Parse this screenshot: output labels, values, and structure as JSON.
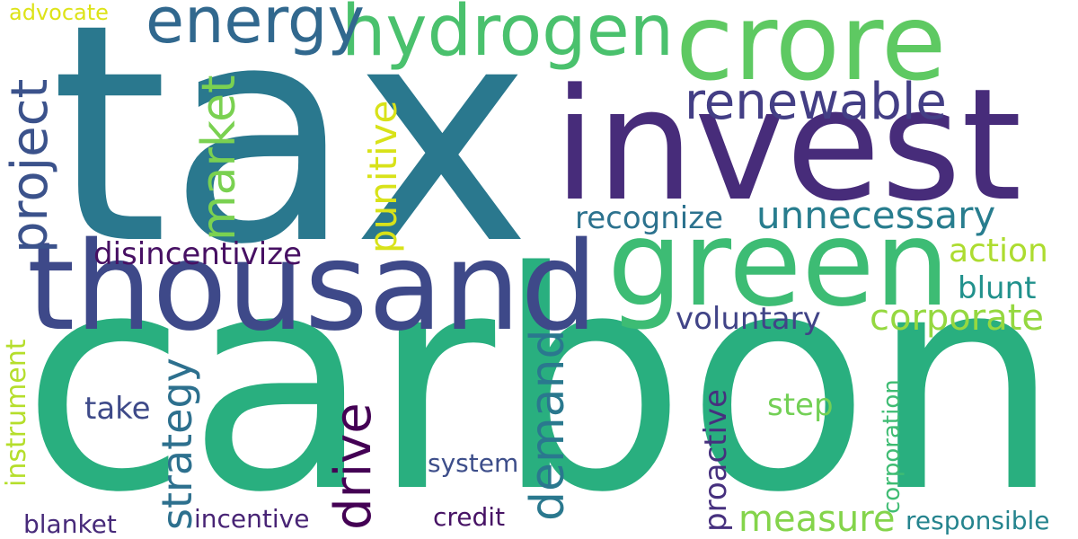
{
  "words": [
    {
      "id": "tax",
      "text": "tax",
      "color": "#2a788e",
      "orientation": "horizontal"
    },
    {
      "id": "carbon",
      "text": "carbon",
      "color": "#29af7f",
      "orientation": "horizontal"
    },
    {
      "id": "invest",
      "text": "invest",
      "color": "#472c7a",
      "orientation": "horizontal"
    },
    {
      "id": "thousand",
      "text": "thousand",
      "color": "#3e4989",
      "orientation": "horizontal"
    },
    {
      "id": "crore",
      "text": "crore",
      "color": "#5ec962",
      "orientation": "horizontal"
    },
    {
      "id": "green",
      "text": "green",
      "color": "#3dbc74",
      "orientation": "horizontal"
    },
    {
      "id": "hydrogen",
      "text": "hydrogen",
      "color": "#4ac16d",
      "orientation": "horizontal"
    },
    {
      "id": "energy",
      "text": "energy",
      "color": "#31688e",
      "orientation": "horizontal"
    },
    {
      "id": "renewable",
      "text": "renewable",
      "color": "#433e85",
      "orientation": "horizontal"
    },
    {
      "id": "project",
      "text": "project",
      "color": "#3b528b",
      "orientation": "vertical"
    },
    {
      "id": "market",
      "text": "market",
      "color": "#7ad151",
      "orientation": "vertical"
    },
    {
      "id": "punitive",
      "text": "punitive",
      "color": "#d8e219",
      "orientation": "vertical"
    },
    {
      "id": "advocate",
      "text": "advocate",
      "color": "#dde318",
      "orientation": "horizontal"
    },
    {
      "id": "unnecessary",
      "text": "unnecessary",
      "color": "#287d8e",
      "orientation": "horizontal"
    },
    {
      "id": "recognize",
      "text": "recognize",
      "color": "#2c728e",
      "orientation": "horizontal"
    },
    {
      "id": "disincentivize",
      "text": "disincentivize",
      "color": "#471063",
      "orientation": "horizontal"
    },
    {
      "id": "action",
      "text": "action",
      "color": "#addc30",
      "orientation": "horizontal"
    },
    {
      "id": "blunt",
      "text": "blunt",
      "color": "#21918c",
      "orientation": "horizontal"
    },
    {
      "id": "corporate",
      "text": "corporate",
      "color": "#95d840",
      "orientation": "horizontal"
    },
    {
      "id": "voluntary",
      "text": "voluntary",
      "color": "#414487",
      "orientation": "horizontal"
    },
    {
      "id": "drive",
      "text": "drive",
      "color": "#440154",
      "orientation": "vertical"
    },
    {
      "id": "demand",
      "text": "demand",
      "color": "#2a788e",
      "orientation": "vertical"
    },
    {
      "id": "strategy",
      "text": "strategy",
      "color": "#2d708e",
      "orientation": "vertical"
    },
    {
      "id": "instrument",
      "text": "instrument",
      "color": "#b5de2b",
      "orientation": "vertical"
    },
    {
      "id": "take",
      "text": "take",
      "color": "#3e4a89",
      "orientation": "horizontal"
    },
    {
      "id": "step",
      "text": "step",
      "color": "#73d056",
      "orientation": "horizontal"
    },
    {
      "id": "proactive",
      "text": "proactive",
      "color": "#46307e",
      "orientation": "vertical"
    },
    {
      "id": "corporation",
      "text": "corporation",
      "color": "#3fbc73",
      "orientation": "vertical"
    },
    {
      "id": "system",
      "text": "system",
      "color": "#3d4e8a",
      "orientation": "horizontal"
    },
    {
      "id": "measure",
      "text": "measure",
      "color": "#84d44b",
      "orientation": "horizontal"
    },
    {
      "id": "blanket",
      "text": "blanket",
      "color": "#472a7a",
      "orientation": "horizontal"
    },
    {
      "id": "incentive",
      "text": "incentive",
      "color": "#482475",
      "orientation": "horizontal"
    },
    {
      "id": "credit",
      "text": "credit",
      "color": "#471365",
      "orientation": "horizontal"
    },
    {
      "id": "responsible",
      "text": "responsible",
      "color": "#25848e",
      "orientation": "horizontal"
    }
  ]
}
